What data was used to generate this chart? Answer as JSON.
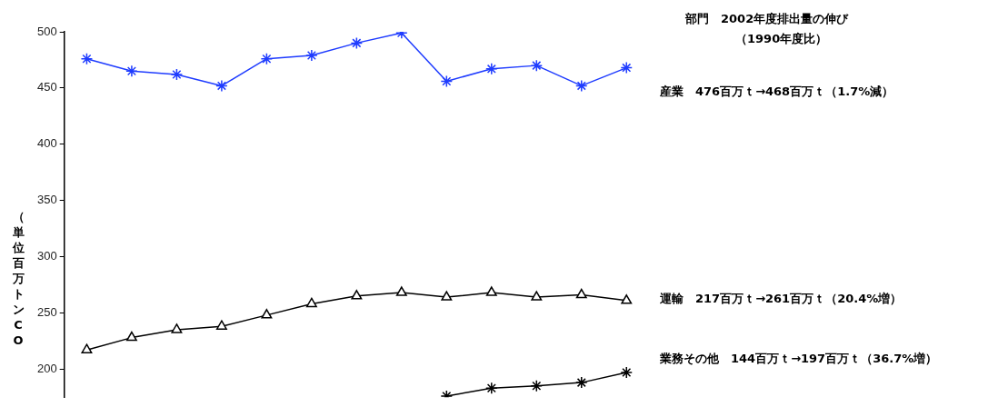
{
  "chart_data": {
    "type": "line",
    "ylabel": "（単位百万トンCO",
    "categories": [
      null,
      null,
      null,
      null,
      null,
      null,
      null,
      null,
      null,
      null,
      null,
      null,
      null
    ],
    "series": [
      {
        "color": "#1f3cff",
        "marker": "cross",
        "values": [
          476,
          465,
          462,
          452,
          476,
          479,
          490,
          499,
          456,
          467,
          470,
          452,
          468
        ]
      },
      {
        "color": "#000000",
        "marker": "triangle",
        "values": [
          217,
          228,
          235,
          238,
          248,
          258,
          265,
          268,
          264,
          268,
          264,
          266,
          261
        ]
      },
      {
        "color": "#000000",
        "marker": "cross",
        "values": [
          null,
          null,
          null,
          null,
          null,
          null,
          null,
          null,
          176,
          183,
          185,
          188,
          197
        ]
      }
    ],
    "ylim": [
      175,
      500
    ],
    "yticks": [
      200,
      250,
      300,
      350,
      400,
      450,
      500
    ],
    "grid": false,
    "legend": false,
    "tick_labels": "y",
    "line_style": "solid",
    "annotations": [
      "部門　2002年度排出量の伸び",
      "（1990年度比）",
      "産業　476百万ｔ→468百万ｔ（1.7%減）",
      "運輸　217百万ｔ→261百万ｔ（20.4%増）",
      "業務その他　144百万ｔ→197百万ｔ（36.7%増）"
    ]
  }
}
